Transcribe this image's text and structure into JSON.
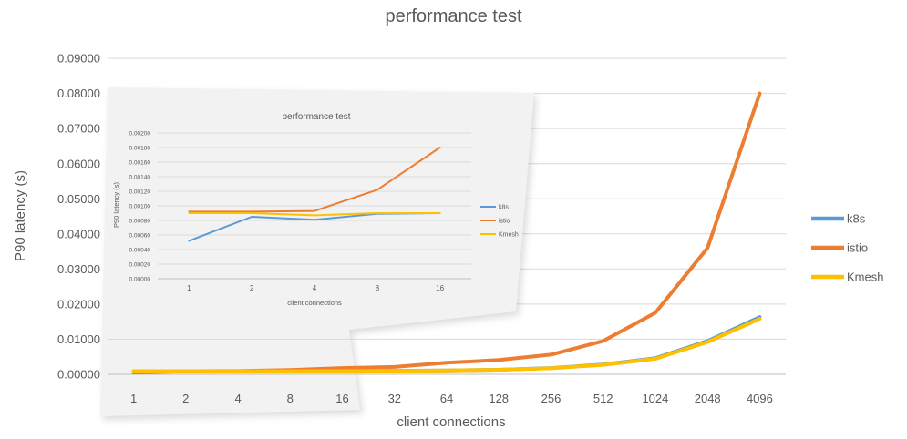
{
  "page": {
    "background": "#ffffff",
    "text_color": "#595959",
    "gridline_color": "#d9d9d9",
    "axisline_color": "#bfbfbf",
    "inset_sheet_color": "#f2f2f2"
  },
  "chart_data": [
    {
      "id": "main",
      "type": "line",
      "title": "performance test",
      "xlabel": "client connections",
      "ylabel": "P90 latency (s)",
      "categories": [
        "1",
        "2",
        "4",
        "8",
        "16",
        "32",
        "64",
        "128",
        "256",
        "512",
        "1024",
        "2048",
        "4096"
      ],
      "ylim": [
        0,
        0.09
      ],
      "yticks": [
        "0.09000",
        "0.08000",
        "0.07000",
        "0.06000",
        "0.05000",
        "0.04000",
        "0.03000",
        "0.02000",
        "0.01000",
        "0.00000"
      ],
      "grid": true,
      "legend_position": "right",
      "series": [
        {
          "name": "k8s",
          "color": "#5B9BD5",
          "values": [
            0.00052,
            0.00085,
            0.00081,
            0.00089,
            0.0009,
            0.001,
            0.0011,
            0.0013,
            0.0018,
            0.0028,
            0.0046,
            0.0095,
            0.0163
          ]
        },
        {
          "name": "istio",
          "color": "#ED7D31",
          "values": [
            0.00092,
            0.00092,
            0.00093,
            0.00122,
            0.0018,
            0.0021,
            0.0033,
            0.0041,
            0.0056,
            0.0095,
            0.0175,
            0.036,
            0.08
          ]
        },
        {
          "name": "Kmesh",
          "color": "#FFC000",
          "values": [
            0.0009,
            0.0009,
            0.00087,
            0.0009,
            0.0009,
            0.00095,
            0.0011,
            0.0013,
            0.0017,
            0.0027,
            0.0044,
            0.0092,
            0.0158
          ]
        }
      ]
    },
    {
      "id": "inset",
      "type": "line",
      "title": "performance test",
      "xlabel": "client connections",
      "ylabel": "P90 latency (s)",
      "categories": [
        "1",
        "2",
        "4",
        "8",
        "16"
      ],
      "ylim": [
        0,
        0.002
      ],
      "yticks": [
        "0.00200",
        "0.00180",
        "0.00160",
        "0.00140",
        "0.00120",
        "0.00100",
        "0.00080",
        "0.00060",
        "0.00040",
        "0.00020",
        "0.00000"
      ],
      "grid": true,
      "legend_position": "right",
      "series": [
        {
          "name": "k8s",
          "color": "#5B9BD5",
          "values": [
            0.00052,
            0.00085,
            0.00081,
            0.00089,
            0.0009
          ]
        },
        {
          "name": "istio",
          "color": "#ED7D31",
          "values": [
            0.00092,
            0.00092,
            0.00093,
            0.00122,
            0.0018
          ]
        },
        {
          "name": "Kmesh",
          "color": "#FFC000",
          "values": [
            0.0009,
            0.0009,
            0.00087,
            0.0009,
            0.0009
          ]
        }
      ]
    }
  ]
}
